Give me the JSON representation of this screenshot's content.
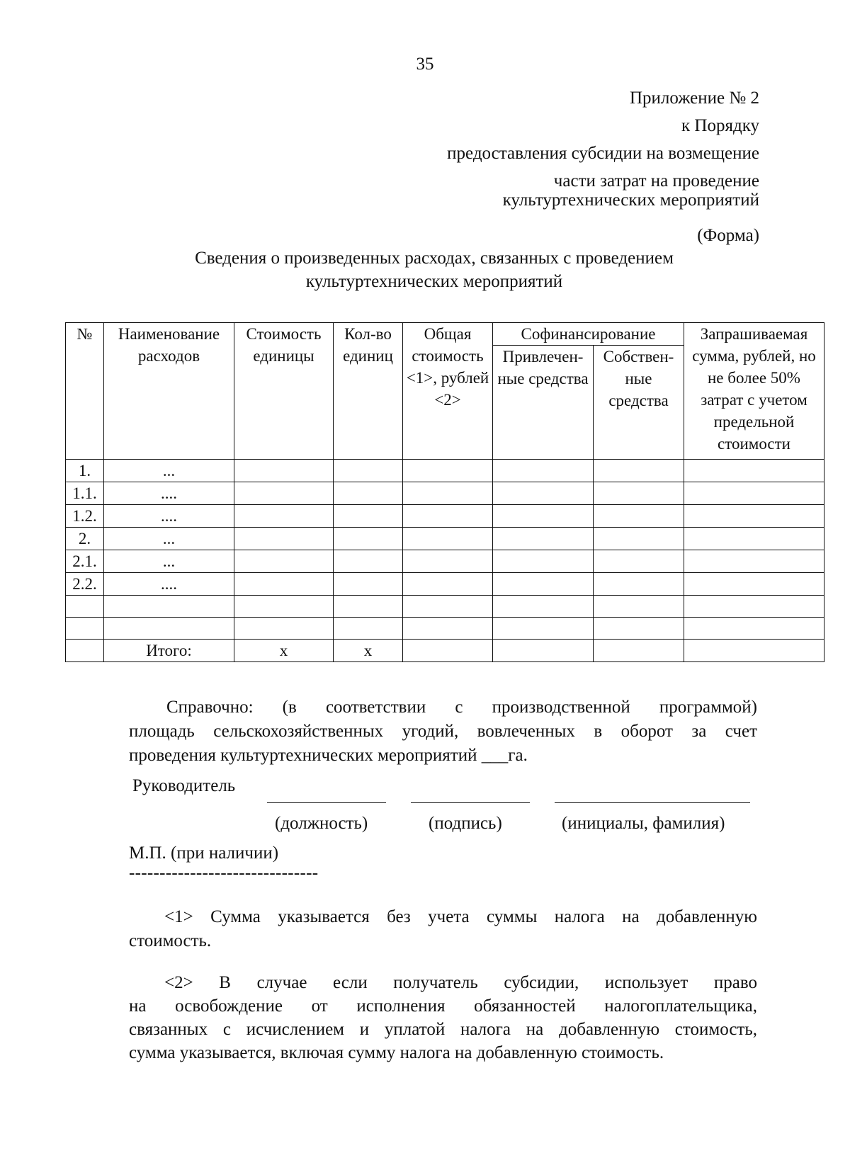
{
  "page_number": "35",
  "appendix": {
    "lines": [
      "Приложение № 2",
      "к Порядку",
      "предоставления субсидии на возмещение",
      "части затрат на проведение",
      "культуртехнических мероприятий"
    ]
  },
  "form_label": "(Форма)",
  "title": {
    "line1": "Сведения о произведенных расходах, связанных с проведением",
    "line2": "культуртехнических мероприятий"
  },
  "table": {
    "headers": {
      "num": "№",
      "name": "Наименование расходов",
      "unit_cost": "Стоимость единицы",
      "qty": "Кол-во единиц",
      "total": "Общая стоимость <1>, рублей <2>",
      "cofinancing": "Софинансирование",
      "attracted": "Привлечен-ные средства",
      "own": "Собствен-ные средства",
      "requested": "Запрашиваемая сумма, рублей, но не более 50% затрат с учетом предельной стоимости"
    },
    "rows": [
      {
        "num": "1.",
        "name": "..."
      },
      {
        "num": "1.1.",
        "name": "...."
      },
      {
        "num": "1.2.",
        "name": "...."
      },
      {
        "num": "2.",
        "name": "..."
      },
      {
        "num": "2.1.",
        "name": "..."
      },
      {
        "num": "2.2.",
        "name": "...."
      },
      {
        "num": "",
        "name": ""
      },
      {
        "num": "",
        "name": ""
      }
    ],
    "total_row": {
      "label": "Итого:",
      "unit_cost": "x",
      "qty": "x"
    }
  },
  "reference": {
    "lines": [
      "Справочно: (в соответствии с производственной программой)",
      "площадь сельскохозяйственных угодий, вовлеченных в оборот за счет",
      "проведения культуртехнических мероприятий ___га."
    ]
  },
  "signature": {
    "head": "Руководитель",
    "position": "(должность)",
    "sign": "(подпись)",
    "name": "(инициалы, фамилия)",
    "stamp": "М.П. (при наличии)",
    "separator": "-------------------------------"
  },
  "footnotes": {
    "note1": [
      "<1> Сумма указывается без учета суммы налога на добавленную",
      "стоимость."
    ],
    "note2": [
      "<2> В случае если получатель субсидии, использует право",
      "на освобождение от исполнения обязанностей налогоплательщика,",
      "связанных с исчислением и уплатой налога на добавленную стоимость,",
      "сумма указывается, включая сумму налога на добавленную стоимость."
    ]
  }
}
